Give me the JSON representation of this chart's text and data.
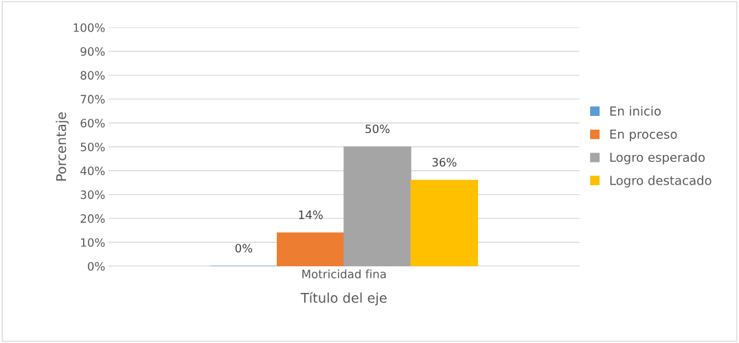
{
  "chart_data": {
    "type": "bar",
    "xlabel": "Título del eje",
    "ylabel": "Porcentaje",
    "categories": [
      "Motricidad fina"
    ],
    "series": [
      {
        "name": "En inicio",
        "color": "#5b9bd5",
        "values": [
          0
        ],
        "value_labels": [
          "0%"
        ]
      },
      {
        "name": "En proceso",
        "color": "#ed7d31",
        "values": [
          14
        ],
        "value_labels": [
          "14%"
        ]
      },
      {
        "name": "Logro esperado",
        "color": "#a5a5a5",
        "values": [
          50
        ],
        "value_labels": [
          "50%"
        ]
      },
      {
        "name": "Logro destacado",
        "color": "#ffc000",
        "values": [
          36
        ],
        "value_labels": [
          "36%"
        ]
      }
    ],
    "ylim": [
      0,
      100
    ],
    "yticks": [
      {
        "value": 0,
        "label": "0%"
      },
      {
        "value": 10,
        "label": "10%"
      },
      {
        "value": 20,
        "label": "20%"
      },
      {
        "value": 30,
        "label": "30%"
      },
      {
        "value": 40,
        "label": "40%"
      },
      {
        "value": 50,
        "label": "50%"
      },
      {
        "value": 60,
        "label": "60%"
      },
      {
        "value": 70,
        "label": "70%"
      },
      {
        "value": 80,
        "label": "80%"
      },
      {
        "value": 90,
        "label": "90%"
      },
      {
        "value": 100,
        "label": "100%"
      }
    ],
    "grid": "y",
    "legend": "right"
  }
}
